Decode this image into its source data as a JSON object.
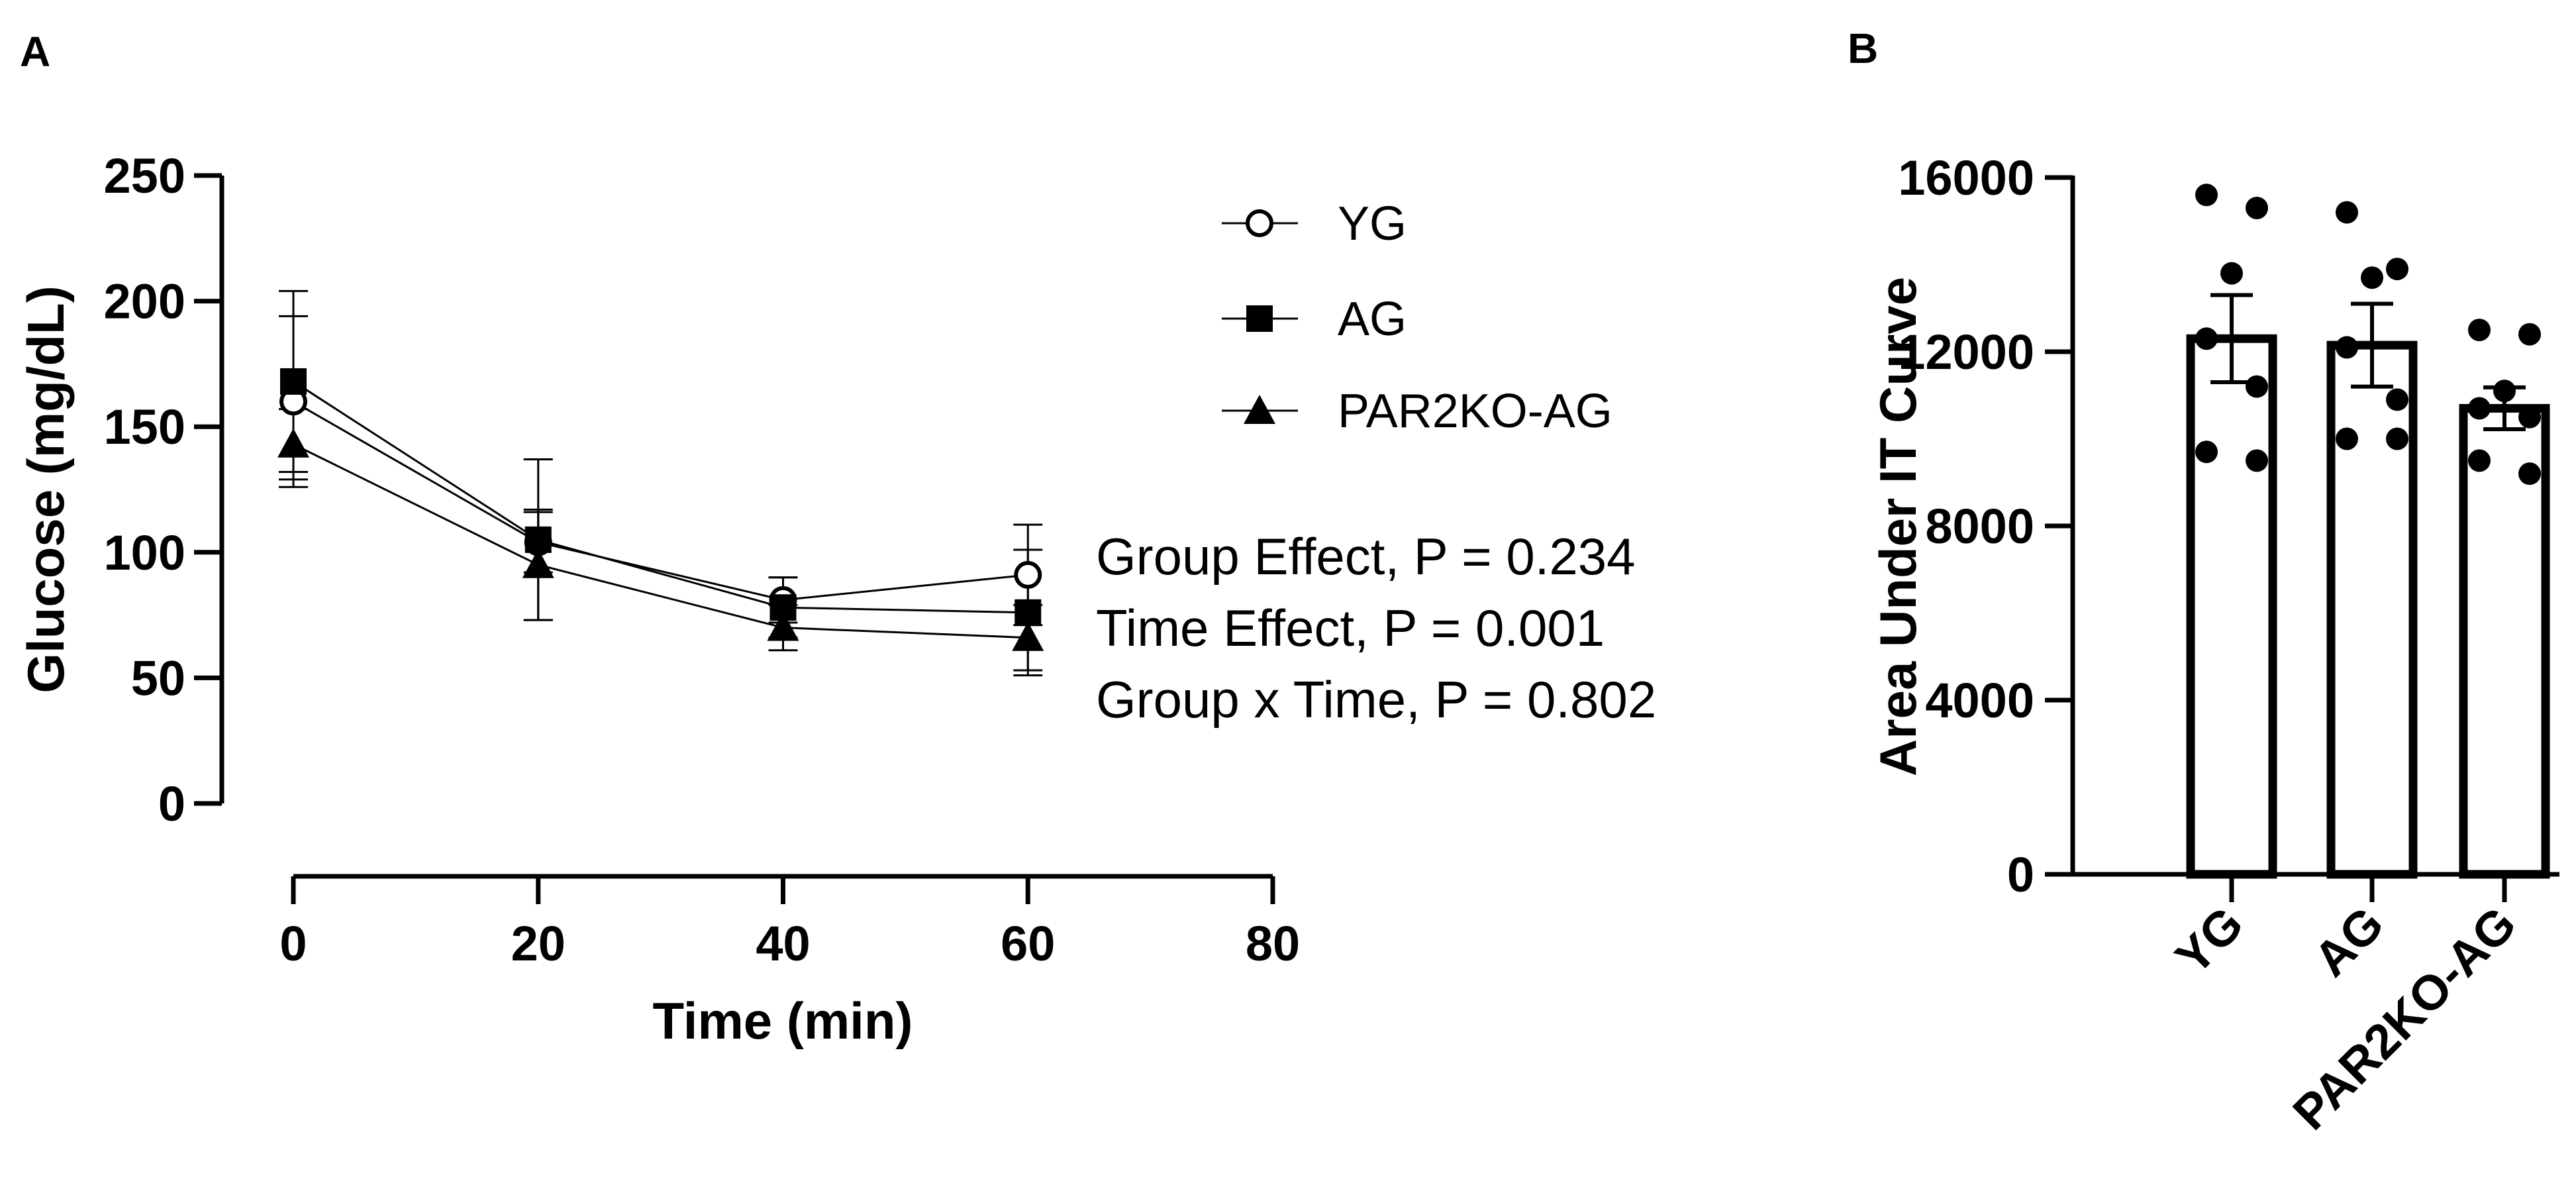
{
  "chart_data": [
    {
      "panel": "A",
      "type": "line",
      "xlabel": "Time (min)",
      "ylabel": "Glucose (mg/dL)",
      "xlim": [
        0,
        80
      ],
      "ylim": [
        0,
        250
      ],
      "xticks": [
        "0",
        "20",
        "40",
        "60",
        "80"
      ],
      "yticks": [
        "0",
        "50",
        "100",
        "150",
        "200",
        "250"
      ],
      "x": [
        0,
        20,
        40,
        60
      ],
      "series": [
        {
          "name": "YG",
          "marker": "open-circle",
          "values": [
            160,
            104,
            81,
            91
          ],
          "errors": [
            34,
            12,
            9,
            20
          ]
        },
        {
          "name": "AG",
          "marker": "filled-square",
          "values": [
            168,
            105,
            78,
            76
          ],
          "errors": [
            36,
            32,
            12,
            25
          ]
        },
        {
          "name": "PAR2KO-AG",
          "marker": "filled-triangle",
          "values": [
            143,
            95,
            70,
            66
          ],
          "errors": [
            14,
            22,
            9,
            13
          ]
        }
      ],
      "annotations": [
        "Group Effect, P = 0.234",
        "Time Effect, P = 0.001",
        "Group x Time, P = 0.802"
      ],
      "legend_position": "top-right"
    },
    {
      "panel": "B",
      "type": "bar",
      "ylabel": "Area Under IT Curve",
      "ylim": [
        0,
        16000
      ],
      "yticks": [
        "0",
        "4000",
        "8000",
        "12000",
        "16000"
      ],
      "categories": [
        "YG",
        "AG",
        "PAR2KO-AG"
      ],
      "values": [
        12300,
        12150,
        10700
      ],
      "errors": [
        1000,
        950,
        480
      ],
      "points": [
        [
          15600,
          15300,
          13800,
          12300,
          11200,
          9700,
          9500
        ],
        [
          15200,
          13900,
          13700,
          12100,
          10900,
          10000,
          10000
        ],
        [
          12500,
          12400,
          11100,
          10700,
          10500,
          9500,
          9200
        ]
      ]
    }
  ],
  "panel_labels": [
    "A",
    "B"
  ]
}
